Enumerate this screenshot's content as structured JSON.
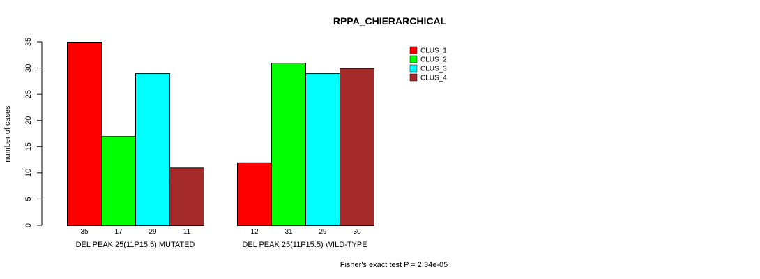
{
  "chart_data": {
    "type": "bar",
    "title": "RPPA_CHIERARCHICAL",
    "ylabel": "number of cases",
    "xlabel": "",
    "ylim": [
      0,
      35
    ],
    "yticks": [
      0,
      5,
      10,
      15,
      20,
      25,
      30,
      35
    ],
    "groups": [
      "DEL PEAK 25(11P15.5) MUTATED",
      "DEL PEAK 25(11P15.5) WILD-TYPE"
    ],
    "series": [
      {
        "name": "CLUS_1",
        "color": "#ff0000",
        "values": [
          35,
          12
        ]
      },
      {
        "name": "CLUS_2",
        "color": "#00ff00",
        "values": [
          17,
          31
        ]
      },
      {
        "name": "CLUS_3",
        "color": "#00ffff",
        "values": [
          29,
          29
        ]
      },
      {
        "name": "CLUS_4",
        "color": "#a52a2a",
        "values": [
          11,
          30
        ]
      }
    ],
    "bar_labels": [
      [
        "35",
        "17",
        "29",
        "11"
      ],
      [
        "12",
        "31",
        "29",
        "30"
      ]
    ],
    "legend_position": "top-right",
    "grid": false,
    "footnote": "Fisher's exact test P = 2.34e-05"
  }
}
